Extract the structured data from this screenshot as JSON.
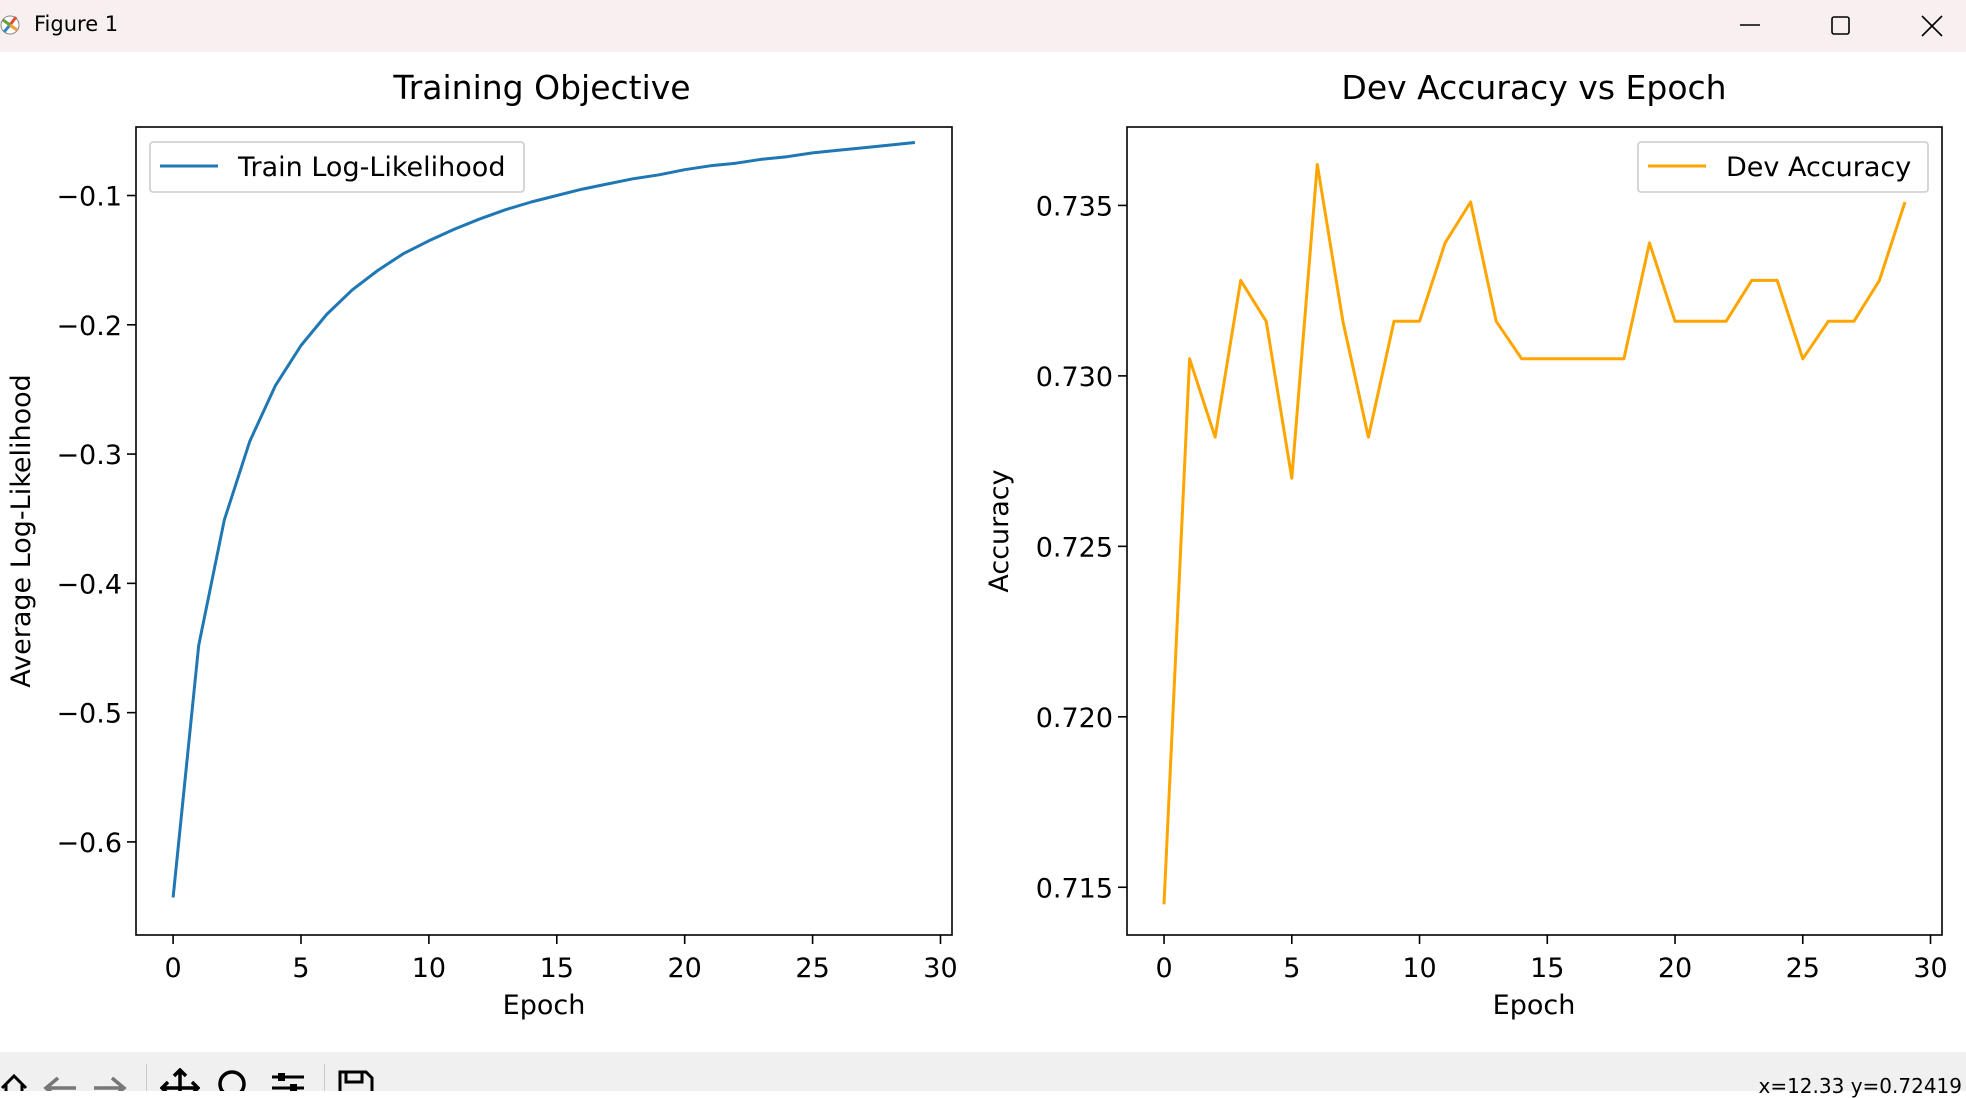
{
  "window": {
    "title": "Figure 1",
    "icons": [
      "app-icon",
      "minimize-icon",
      "maximize-icon",
      "close-icon"
    ]
  },
  "toolbar": {
    "tools": [
      "home-icon",
      "back-icon",
      "forward-icon",
      "pan-icon",
      "zoom-icon",
      "configure-subplots-icon",
      "save-icon"
    ],
    "coords": "x=12.33 y=0.72419"
  },
  "chart_data": [
    {
      "type": "line",
      "title": "Training Objective",
      "xlabel": "Epoch",
      "ylabel": "Average Log-Likelihood",
      "xlim": [
        -1.45,
        30.45
      ],
      "ylim": [
        -0.672,
        -0.047
      ],
      "xticks": [
        0,
        5,
        10,
        15,
        20,
        25,
        30
      ],
      "xtick_labels": [
        "0",
        "5",
        "10",
        "15",
        "20",
        "25",
        "30"
      ],
      "yticks": [
        -0.1,
        -0.2,
        -0.3,
        -0.4,
        -0.5,
        -0.6
      ],
      "ytick_labels": [
        "−0.1",
        "−0.2",
        "−0.3",
        "−0.4",
        "−0.5",
        "−0.6"
      ],
      "grid": false,
      "legend": "upper-left",
      "series": [
        {
          "name": "Train Log-Likelihood",
          "color": "#1f77b4",
          "x": [
            0,
            1,
            2,
            3,
            4,
            5,
            6,
            7,
            8,
            9,
            10,
            11,
            12,
            13,
            14,
            15,
            16,
            17,
            18,
            19,
            20,
            21,
            22,
            23,
            24,
            25,
            26,
            27,
            28,
            29
          ],
          "y": [
            -0.643,
            -0.448,
            -0.351,
            -0.29,
            -0.247,
            -0.216,
            -0.192,
            -0.173,
            -0.158,
            -0.145,
            -0.135,
            -0.126,
            -0.118,
            -0.111,
            -0.105,
            -0.1,
            -0.095,
            -0.091,
            -0.087,
            -0.084,
            -0.08,
            -0.077,
            -0.075,
            -0.072,
            -0.07,
            -0.067,
            -0.065,
            -0.063,
            -0.061,
            -0.059
          ]
        }
      ]
    },
    {
      "type": "line",
      "title": "Dev Accuracy vs Epoch",
      "xlabel": "Epoch",
      "ylabel": "Accuracy",
      "xlim": [
        -1.45,
        30.45
      ],
      "ylim": [
        0.7136,
        0.7373
      ],
      "xticks": [
        0,
        5,
        10,
        15,
        20,
        25,
        30
      ],
      "xtick_labels": [
        "0",
        "5",
        "10",
        "15",
        "20",
        "25",
        "30"
      ],
      "yticks": [
        0.715,
        0.72,
        0.725,
        0.73,
        0.735
      ],
      "ytick_labels": [
        "0.715",
        "0.720",
        "0.725",
        "0.730",
        "0.735"
      ],
      "grid": false,
      "legend": "upper-right",
      "series": [
        {
          "name": "Dev Accuracy",
          "color": "#ffa500",
          "x": [
            0,
            1,
            2,
            3,
            4,
            5,
            6,
            7,
            8,
            9,
            10,
            11,
            12,
            13,
            14,
            15,
            16,
            17,
            18,
            19,
            20,
            21,
            22,
            23,
            24,
            25,
            26,
            27,
            28,
            29
          ],
          "y": [
            0.7145,
            0.7305,
            0.7282,
            0.7328,
            0.7316,
            0.727,
            0.7362,
            0.7316,
            0.7282,
            0.7316,
            0.7316,
            0.7339,
            0.7351,
            0.7316,
            0.7305,
            0.7305,
            0.7305,
            0.7305,
            0.7305,
            0.7339,
            0.7316,
            0.7316,
            0.7316,
            0.7328,
            0.7328,
            0.7305,
            0.7316,
            0.7316,
            0.7328,
            0.7351
          ]
        }
      ]
    }
  ]
}
